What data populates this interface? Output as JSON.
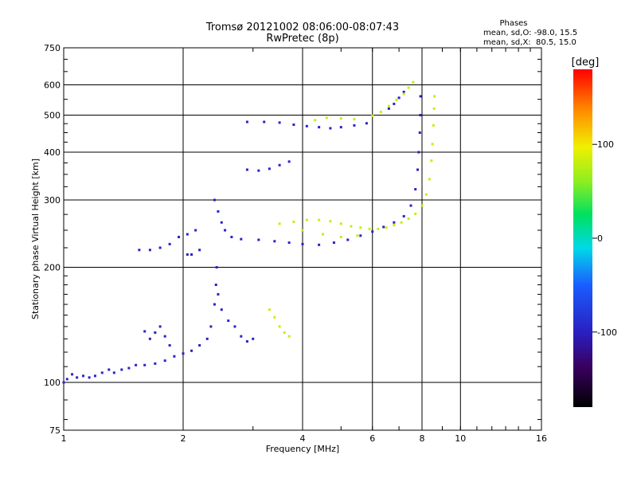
{
  "chart_data": {
    "type": "scatter",
    "title": "Tromsø 20121002 08:06:00-08:07:43",
    "subtitle": "RwPretec (8p)",
    "xlabel": "Frequency [MHz]",
    "ylabel": "Stationary phase Virtual Height [km]",
    "x_scale": "log",
    "y_scale": "log",
    "xlim": [
      1,
      16
    ],
    "ylim": [
      75,
      750
    ],
    "x_ticks": [
      "1",
      "2",
      "4",
      "6",
      "8",
      "10",
      "16"
    ],
    "x_tick_values": [
      1,
      2,
      4,
      6,
      8,
      10,
      16
    ],
    "y_ticks": [
      "75",
      "100",
      "200",
      "300",
      "400",
      "500",
      "600",
      "750"
    ],
    "y_tick_values": [
      75,
      100,
      200,
      300,
      400,
      500,
      600,
      750
    ],
    "grid": true,
    "stats": {
      "heading": "Phases",
      "line1": "mean, sd,O: -98.0, 15.5",
      "line2": "mean, sd,X:  80.5, 15.0"
    },
    "colorbar": {
      "label": "[deg]",
      "range": [
        -180,
        180
      ],
      "tick_labels": [
        "100",
        "0",
        "-100"
      ],
      "tick_values": [
        100,
        0,
        -100
      ]
    },
    "series": [
      {
        "mode": "O",
        "phase_mean": -98.0,
        "points": [
          [
            1.0,
            100
          ],
          [
            1.02,
            102
          ],
          [
            1.05,
            105
          ],
          [
            1.08,
            103
          ],
          [
            1.12,
            104
          ],
          [
            1.16,
            103
          ],
          [
            1.2,
            104
          ],
          [
            1.25,
            106
          ],
          [
            1.3,
            108
          ],
          [
            1.34,
            106
          ],
          [
            1.4,
            108
          ],
          [
            1.46,
            109
          ],
          [
            1.52,
            111
          ],
          [
            1.6,
            111
          ],
          [
            1.7,
            112
          ],
          [
            1.8,
            114
          ],
          [
            1.9,
            117
          ],
          [
            2.0,
            119
          ],
          [
            2.1,
            121
          ],
          [
            2.2,
            125
          ],
          [
            2.3,
            130
          ],
          [
            2.35,
            140
          ],
          [
            2.4,
            160
          ],
          [
            2.42,
            180
          ],
          [
            2.43,
            200
          ],
          [
            1.6,
            136
          ],
          [
            1.65,
            130
          ],
          [
            1.7,
            135
          ],
          [
            1.75,
            140
          ],
          [
            1.8,
            132
          ],
          [
            1.85,
            125
          ],
          [
            2.45,
            170
          ],
          [
            2.5,
            155
          ],
          [
            2.6,
            145
          ],
          [
            2.7,
            140
          ],
          [
            2.8,
            132
          ],
          [
            2.9,
            128
          ],
          [
            3.0,
            130
          ],
          [
            1.55,
            222
          ],
          [
            1.65,
            222
          ],
          [
            1.75,
            225
          ],
          [
            1.85,
            230
          ],
          [
            1.95,
            240
          ],
          [
            2.05,
            244
          ],
          [
            2.15,
            250
          ],
          [
            2.05,
            216
          ],
          [
            2.1,
            216
          ],
          [
            2.2,
            222
          ],
          [
            2.4,
            300
          ],
          [
            2.45,
            280
          ],
          [
            2.5,
            262
          ],
          [
            2.55,
            250
          ],
          [
            2.65,
            240
          ],
          [
            2.8,
            237
          ],
          [
            3.1,
            236
          ],
          [
            3.4,
            234
          ],
          [
            3.7,
            232
          ],
          [
            4.0,
            230
          ],
          [
            4.4,
            229
          ],
          [
            4.8,
            232
          ],
          [
            5.2,
            236
          ],
          [
            5.6,
            242
          ],
          [
            6.0,
            248
          ],
          [
            6.4,
            255
          ],
          [
            6.8,
            262
          ],
          [
            7.2,
            272
          ],
          [
            7.5,
            290
          ],
          [
            7.7,
            320
          ],
          [
            7.8,
            360
          ],
          [
            7.85,
            400
          ],
          [
            7.9,
            450
          ],
          [
            7.92,
            500
          ],
          [
            7.93,
            560
          ],
          [
            2.9,
            480
          ],
          [
            3.2,
            480
          ],
          [
            3.5,
            478
          ],
          [
            3.8,
            472
          ],
          [
            4.1,
            468
          ],
          [
            4.4,
            465
          ],
          [
            4.7,
            462
          ],
          [
            5.0,
            465
          ],
          [
            5.4,
            470
          ],
          [
            5.8,
            476
          ],
          [
            2.9,
            360
          ],
          [
            3.1,
            358
          ],
          [
            3.3,
            362
          ],
          [
            3.5,
            370
          ],
          [
            3.7,
            378
          ],
          [
            6.6,
            520
          ],
          [
            6.8,
            535
          ],
          [
            7.0,
            555
          ],
          [
            7.2,
            575
          ]
        ]
      },
      {
        "mode": "X",
        "phase_mean": 80.5,
        "points": [
          [
            3.5,
            260
          ],
          [
            3.8,
            263
          ],
          [
            4.1,
            266
          ],
          [
            4.4,
            266
          ],
          [
            4.7,
            264
          ],
          [
            5.0,
            260
          ],
          [
            5.3,
            256
          ],
          [
            5.6,
            254
          ],
          [
            5.9,
            252
          ],
          [
            6.2,
            252
          ],
          [
            6.5,
            254
          ],
          [
            6.8,
            258
          ],
          [
            7.1,
            262
          ],
          [
            7.4,
            268
          ],
          [
            7.7,
            276
          ],
          [
            8.0,
            290
          ],
          [
            8.2,
            310
          ],
          [
            8.35,
            340
          ],
          [
            8.45,
            380
          ],
          [
            8.5,
            420
          ],
          [
            8.55,
            470
          ],
          [
            8.58,
            520
          ],
          [
            8.6,
            560
          ],
          [
            4.0,
            250
          ],
          [
            4.5,
            244
          ],
          [
            5.0,
            240
          ],
          [
            5.5,
            242
          ],
          [
            6.0,
            498
          ],
          [
            6.3,
            510
          ],
          [
            6.6,
            528
          ],
          [
            6.9,
            548
          ],
          [
            7.2,
            568
          ],
          [
            7.4,
            590
          ],
          [
            7.6,
            610
          ],
          [
            3.3,
            155
          ],
          [
            3.4,
            148
          ],
          [
            3.5,
            140
          ],
          [
            3.6,
            135
          ],
          [
            3.7,
            132
          ],
          [
            4.3,
            485
          ],
          [
            4.6,
            492
          ],
          [
            5.0,
            490
          ],
          [
            5.4,
            488
          ]
        ]
      }
    ]
  }
}
